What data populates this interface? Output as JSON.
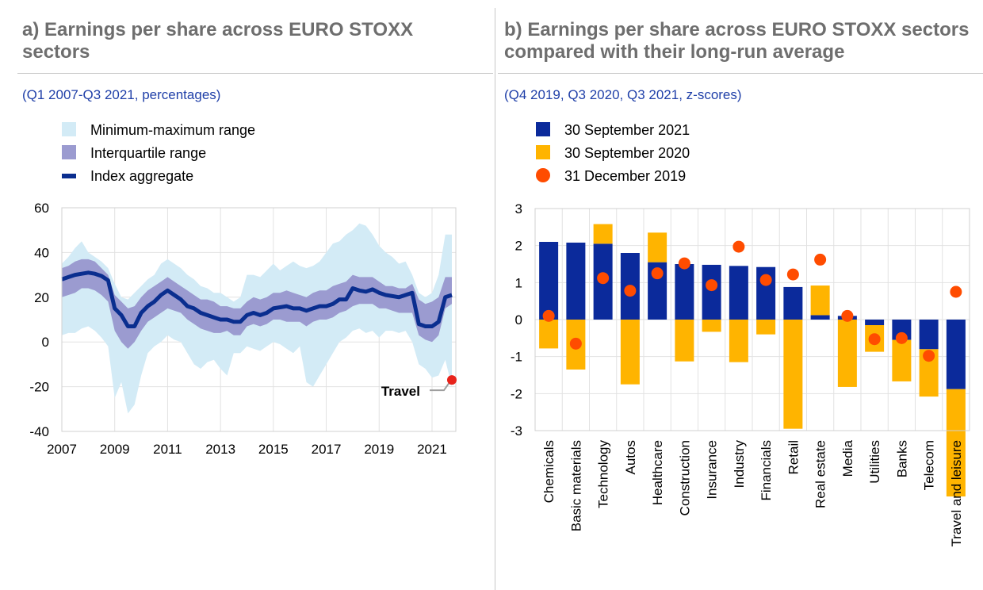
{
  "panels": {
    "left": {
      "title": "a) Earnings per share across EURO STOXX sectors",
      "subtitle": "(Q1 2007-Q3 2021, percentages)"
    },
    "right": {
      "title": "b) Earnings per share across EURO STOXX sectors compared with their long-run average",
      "subtitle": "(Q4 2019, Q3 2020, Q3 2021, z-scores)"
    }
  },
  "colors": {
    "minmax": "#d3ebf6",
    "iqr": "#9b9bd0",
    "aggregate": "#0a2e8f",
    "bar2021": "#0b2a9b",
    "bar2020": "#ffb400",
    "dot2019": "#ff4c00",
    "travel_dot": "#e8231b"
  },
  "chart_data": [
    {
      "type": "area",
      "title": "a) Earnings per share across EURO STOXX sectors",
      "subtitle": "(Q1 2007-Q3 2021, percentages)",
      "ylim": [
        -40,
        60
      ],
      "yticks": [
        "60",
        "40",
        "20",
        "0",
        "-20",
        "-40"
      ],
      "xlim": [
        2007,
        2021.9
      ],
      "xticks": [
        "2007",
        "2009",
        "2011",
        "2013",
        "2015",
        "2017",
        "2019",
        "2021"
      ],
      "grid": true,
      "legend": [
        {
          "label": "Minimum-maximum range",
          "kind": "minmax"
        },
        {
          "label": "Interquartile range",
          "kind": "iqr"
        },
        {
          "label": "Index aggregate",
          "kind": "line"
        }
      ],
      "x": [
        2007.0,
        2007.25,
        2007.5,
        2007.75,
        2008.0,
        2008.25,
        2008.5,
        2008.75,
        2009.0,
        2009.25,
        2009.5,
        2009.75,
        2010.0,
        2010.25,
        2010.5,
        2010.75,
        2011.0,
        2011.25,
        2011.5,
        2011.75,
        2012.0,
        2012.25,
        2012.5,
        2012.75,
        2013.0,
        2013.25,
        2013.5,
        2013.75,
        2014.0,
        2014.25,
        2014.5,
        2014.75,
        2015.0,
        2015.25,
        2015.5,
        2015.75,
        2016.0,
        2016.25,
        2016.5,
        2016.75,
        2017.0,
        2017.25,
        2017.5,
        2017.75,
        2018.0,
        2018.25,
        2018.5,
        2018.75,
        2019.0,
        2019.25,
        2019.5,
        2019.75,
        2020.0,
        2020.25,
        2020.5,
        2020.75,
        2021.0,
        2021.25,
        2021.5,
        2021.75
      ],
      "series": [
        {
          "name": "Index aggregate",
          "values": [
            28,
            29,
            30,
            30.5,
            31,
            30.5,
            29.5,
            27.5,
            15,
            12,
            7,
            7,
            13,
            16,
            18,
            21,
            23,
            21,
            19,
            16,
            15,
            13,
            12,
            11,
            10,
            10,
            9,
            9,
            12,
            13,
            12,
            13,
            15,
            15.5,
            16,
            15,
            15,
            14,
            15,
            16,
            16,
            17,
            19,
            19,
            24,
            23,
            22.5,
            23.5,
            22,
            21,
            20.5,
            20,
            21,
            22,
            8,
            7,
            7,
            9,
            20,
            21
          ]
        },
        {
          "name": "Minimum-maximum range",
          "low": [
            3,
            4,
            4,
            6,
            7,
            5,
            2,
            -2,
            -25,
            -18,
            -32,
            -28,
            -15,
            -5,
            -2,
            0,
            3,
            1,
            0,
            -5,
            -10,
            -12,
            -9,
            -8,
            -12,
            -15,
            -5,
            -5,
            -2,
            -3,
            -4,
            -2,
            0,
            -1,
            -3,
            -5,
            -2,
            -18,
            -20,
            -15,
            -10,
            -5,
            0,
            2,
            5,
            6,
            4,
            5,
            2,
            5,
            5,
            4,
            5,
            0,
            -10,
            -12,
            -16,
            -15,
            -8,
            -20
          ],
          "high": [
            35,
            38,
            42,
            45,
            40,
            38,
            36,
            33,
            26,
            20,
            19,
            22,
            25,
            28,
            30,
            35,
            37,
            35,
            33,
            30,
            28,
            25,
            24,
            22,
            22,
            20,
            18,
            20,
            30,
            30,
            29,
            32,
            35,
            32,
            34,
            36,
            34,
            33,
            34,
            36,
            40,
            44,
            45,
            48,
            50,
            53,
            52,
            48,
            43,
            40,
            38,
            35,
            36,
            30,
            22,
            20,
            22,
            30,
            48,
            48
          ]
        },
        {
          "name": "Interquartile range",
          "low": [
            20,
            21,
            22,
            24,
            24,
            23,
            21,
            18,
            5,
            0,
            -3,
            0,
            5,
            9,
            11,
            13,
            15,
            14,
            13,
            10,
            8,
            6,
            5,
            4,
            4,
            5,
            3,
            3,
            7,
            8,
            7,
            8,
            10,
            10,
            9,
            9,
            9,
            7,
            9,
            10,
            10,
            11,
            13,
            14,
            16,
            17,
            17,
            17,
            15,
            15,
            14,
            13,
            13,
            13,
            3,
            1,
            0,
            3,
            15,
            17
          ],
          "high": [
            33,
            34,
            36,
            37,
            37,
            36,
            33,
            30,
            21,
            18,
            15,
            16,
            20,
            23,
            25,
            27,
            29,
            27,
            25,
            23,
            21,
            19,
            19,
            18,
            16,
            16,
            15,
            15,
            18,
            20,
            19,
            20,
            22,
            22,
            23,
            22,
            21,
            20,
            22,
            23,
            23,
            25,
            26,
            27,
            30,
            29,
            29,
            29,
            27,
            25,
            25,
            24,
            24,
            26,
            19,
            17,
            18,
            20,
            29,
            29
          ]
        }
      ],
      "annotation": {
        "label": "Travel",
        "x": 2021.75,
        "y": -17
      }
    },
    {
      "type": "bar",
      "title": "b) Earnings per share across EURO STOXX sectors compared with their long-run average",
      "subtitle": "(Q4 2019, Q3 2020, Q3 2021, z-scores)",
      "ylim": [
        -3,
        3
      ],
      "yticks": [
        "3",
        "2",
        "1",
        "0",
        "-1",
        "-2",
        "-3"
      ],
      "grid": true,
      "categories": [
        "Chemicals",
        "Basic materials",
        "Technology",
        "Autos",
        "Healthcare",
        "Construction",
        "Insurance",
        "Industry",
        "Financials",
        "Retail",
        "Real estate",
        "Media",
        "Utilities",
        "Banks",
        "Telecom",
        "Travel and leisure"
      ],
      "legend": [
        {
          "label": "30 September 2021",
          "kind": "bar2021"
        },
        {
          "label": "30 September 2020",
          "kind": "bar2020"
        },
        {
          "label": "31 December 2019",
          "kind": "dot2019"
        }
      ],
      "series": [
        {
          "name": "30 September 2021",
          "values": [
            2.1,
            2.08,
            2.05,
            1.8,
            1.55,
            1.5,
            1.48,
            1.45,
            1.42,
            0.88,
            0.12,
            0.1,
            -0.15,
            -0.55,
            -0.8,
            -1.88
          ]
        },
        {
          "name": "30 September 2020",
          "values": [
            -0.78,
            -1.35,
            0.53,
            -1.75,
            0.8,
            -1.13,
            -0.33,
            -1.15,
            -0.4,
            -2.95,
            0.8,
            -1.82,
            -0.72,
            -1.12,
            -1.28,
            -2.9
          ]
        },
        {
          "name": "31 December 2019",
          "values": [
            0.1,
            -0.65,
            1.12,
            0.78,
            1.25,
            1.52,
            0.93,
            1.97,
            1.07,
            1.22,
            1.62,
            0.1,
            -0.53,
            -0.5,
            -0.98,
            0.75
          ]
        }
      ]
    }
  ]
}
